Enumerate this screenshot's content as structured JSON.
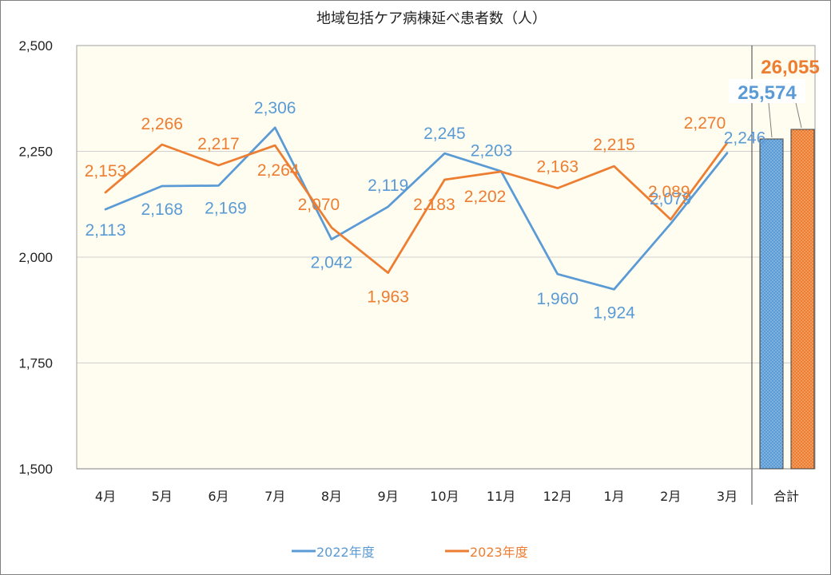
{
  "chart_data": {
    "type": "line",
    "title": "地域包括ケア病棟延べ患者数（人）",
    "categories": [
      "4月",
      "5月",
      "6月",
      "7月",
      "8月",
      "9月",
      "10月",
      "11月",
      "12月",
      "1月",
      "2月",
      "3月"
    ],
    "series": [
      {
        "name": "2022年度",
        "color": "#5B9BD5",
        "values": [
          2113,
          2168,
          2169,
          2306,
          2042,
          2119,
          2245,
          2203,
          1960,
          1924,
          2079,
          2246
        ],
        "labels": [
          "2,113",
          "2,168",
          "2,169",
          "2,306",
          "2,042",
          "2,119",
          "2,245",
          "2,203",
          "1,960",
          "1,924",
          "2,079",
          "2,246"
        ]
      },
      {
        "name": "2023年度",
        "color": "#ED7D31",
        "values": [
          2153,
          2266,
          2217,
          2264,
          2070,
          1963,
          2183,
          2202,
          2163,
          2215,
          2089,
          2270
        ],
        "labels": [
          "2,153",
          "2,266",
          "2,217",
          "2,264",
          "2,070",
          "1,963",
          "2,183",
          "2,202",
          "2,163",
          "2,215",
          "2,089",
          "2,270"
        ]
      }
    ],
    "totals": {
      "category": "合計",
      "items": [
        {
          "series": "2022年度",
          "value": 25574,
          "label": "25,574",
          "color": "#5B9BD5"
        },
        {
          "series": "2023年度",
          "value": 26055,
          "label": "26,055",
          "color": "#ED7D31"
        }
      ]
    },
    "y_ticks": [
      "1,500",
      "1,750",
      "2,000",
      "2,250",
      "2,500"
    ],
    "ylim": [
      1500,
      2500
    ],
    "grid": true,
    "plot_background": "#FFFDF0",
    "legend": {
      "position": "bottom"
    }
  }
}
